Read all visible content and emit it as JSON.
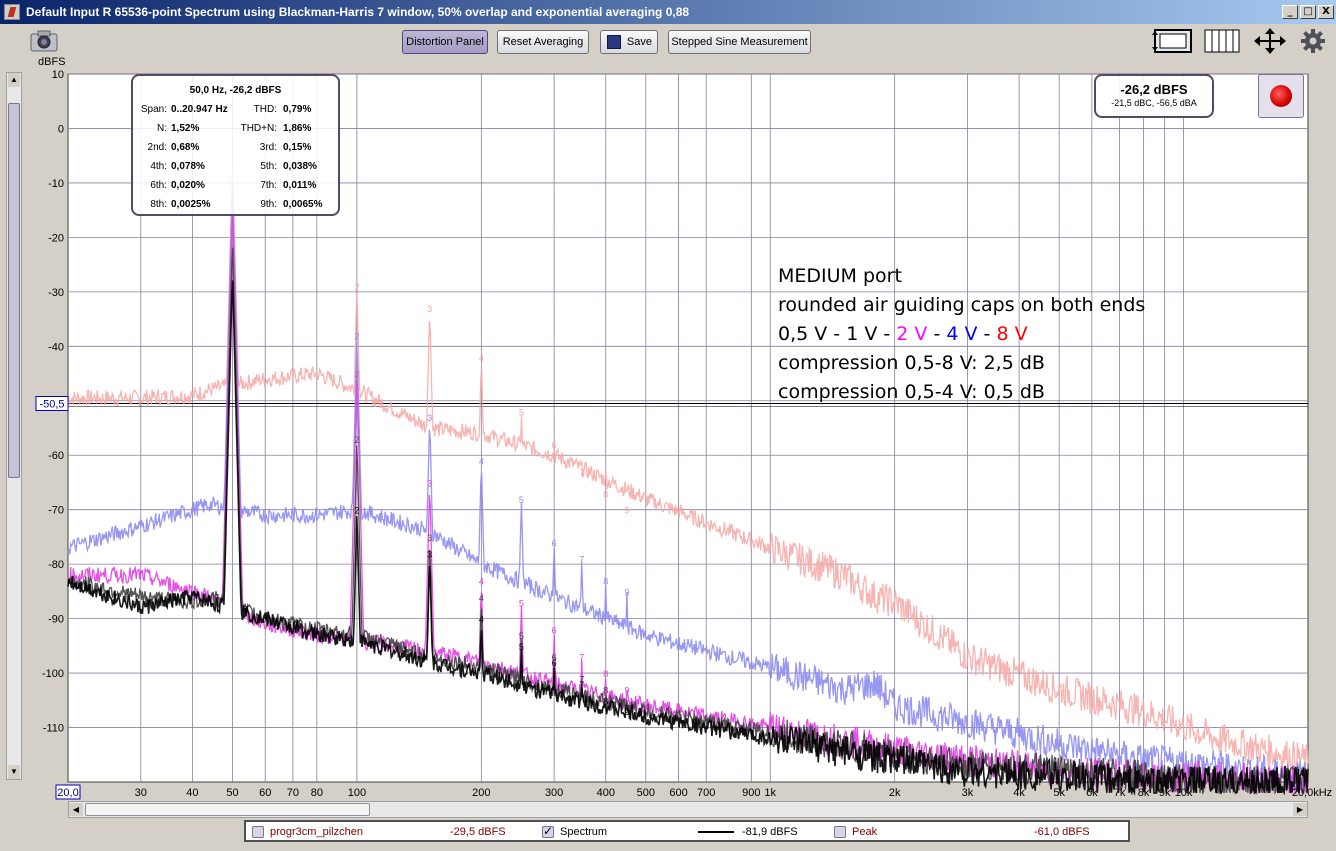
{
  "window": {
    "title": "Default Input R 65536-point Spectrum using Blackman-Harris 7 window, 50% overlap and exponential averaging 0,88",
    "buttons": [
      "_",
      "□",
      "X"
    ]
  },
  "toolbar": {
    "distortion_panel": "Distortion Panel",
    "reset_averaging": "Reset Averaging",
    "save": "Save",
    "stepped_sine": "Stepped Sine Measurement"
  },
  "distortion_panel": {
    "header": "50,0 Hz, -26,2 dBFS",
    "rows": [
      {
        "l1": "Span:",
        "v1": "0..20.947 Hz",
        "l2": "THD:",
        "v2": "0,79%"
      },
      {
        "l1": "N:",
        "v1": "1,52%",
        "l2": "THD+N:",
        "v2": "1,86%"
      },
      {
        "l1": "2nd:",
        "v1": "0,68%",
        "l2": "3rd:",
        "v2": "0,15%"
      },
      {
        "l1": "4th:",
        "v1": "0,078%",
        "l2": "5th:",
        "v2": "0,038%"
      },
      {
        "l1": "6th:",
        "v1": "0,020%",
        "l2": "7th:",
        "v2": "0,011%"
      },
      {
        "l1": "8th:",
        "v1": "0,0025%",
        "l2": "9th:",
        "v2": "0,0065%"
      }
    ]
  },
  "level_readout": {
    "main": "-26,2 dBFS",
    "sub": "-21,5 dBC, -56,5 dBA"
  },
  "annotation": {
    "line1": "MEDIUM port",
    "line2": "rounded air guiding caps on both ends",
    "line3_a": "0,5 V - 1 V  -",
    "line3_b": "2 V",
    "line3_c": " -",
    "line3_d": "4 V",
    "line3_e": "-",
    "line3_f": "8 V",
    "line4": "compression 0,5-8 V: 2,5 dB",
    "line5": "compression 0,5-4 V: 0,5 dB"
  },
  "y_unit": "dBFS",
  "marker_value": "-50,5",
  "x_start_label": "20,0",
  "x_end_label": "20,0kHz",
  "legend": {
    "item1": {
      "name": "progr3cm_pilzchen",
      "value": "-29,5 dBFS"
    },
    "item2": {
      "name": "Spectrum",
      "value": "-81,9 dBFS"
    },
    "item3": {
      "name": "Peak",
      "value": "-61,0 dBFS"
    }
  },
  "colors": {
    "v8": "#f5a8a4",
    "v4": "#8c8cf0",
    "v2": "#e040e0",
    "v1": "#404040",
    "v05": "#000000"
  },
  "chart_data": {
    "type": "line",
    "x_scale": "log",
    "ylabel": "dBFS",
    "xlim": [
      20,
      20000
    ],
    "ylim": [
      -120,
      10
    ],
    "grid": true,
    "x_ticks": [
      {
        "v": 30,
        "t": "30"
      },
      {
        "v": 40,
        "t": "40"
      },
      {
        "v": 50,
        "t": "50"
      },
      {
        "v": 60,
        "t": "60"
      },
      {
        "v": 70,
        "t": "70"
      },
      {
        "v": 80,
        "t": "80"
      },
      {
        "v": 100,
        "t": "100"
      },
      {
        "v": 200,
        "t": "200"
      },
      {
        "v": 300,
        "t": "300"
      },
      {
        "v": 400,
        "t": "400"
      },
      {
        "v": 500,
        "t": "500"
      },
      {
        "v": 600,
        "t": "600"
      },
      {
        "v": 700,
        "t": "700"
      },
      {
        "v": 900,
        "t": "900"
      },
      {
        "v": 1000,
        "t": "1k"
      },
      {
        "v": 2000,
        "t": "2k"
      },
      {
        "v": 3000,
        "t": "3k"
      },
      {
        "v": 4000,
        "t": "4k"
      },
      {
        "v": 5000,
        "t": "5k"
      },
      {
        "v": 6000,
        "t": "6k"
      },
      {
        "v": 7000,
        "t": "7k"
      },
      {
        "v": 8000,
        "t": "8k"
      },
      {
        "v": 9000,
        "t": "9k"
      },
      {
        "v": 10000,
        "t": "10k"
      }
    ],
    "y_ticks": [
      10,
      0,
      -10,
      -20,
      -30,
      -40,
      -50,
      -60,
      -70,
      -80,
      -90,
      -100,
      -110
    ],
    "y_tick_labels": [
      "10",
      "0",
      "-10",
      "-20",
      "-30",
      "-40",
      "-50",
      "-60",
      "-70",
      "-80",
      "-90",
      "-100",
      "-110"
    ],
    "marker_y": -50.5,
    "series": [
      {
        "key": "v8",
        "fundamental": -5,
        "harmonics": [
          -29,
          -33,
          -42,
          -52,
          -58,
          -63,
          -67,
          -70
        ],
        "floor": [
          [
            20,
            -49.5
          ],
          [
            30,
            -49.5
          ],
          [
            40,
            -49
          ],
          [
            44,
            -48
          ],
          [
            60,
            -46
          ],
          [
            80,
            -45
          ],
          [
            100,
            -48
          ],
          [
            150,
            -55
          ],
          [
            200,
            -56
          ],
          [
            300,
            -60
          ],
          [
            500,
            -68
          ],
          [
            1000,
            -77
          ],
          [
            1500,
            -82
          ],
          [
            1800,
            -86
          ],
          [
            2000,
            -87
          ],
          [
            3000,
            -97
          ],
          [
            5000,
            -103
          ],
          [
            8000,
            -107
          ],
          [
            12000,
            -112
          ],
          [
            20000,
            -116
          ]
        ]
      },
      {
        "key": "v4",
        "fundamental": -9,
        "harmonics": [
          -38,
          -53,
          -61,
          -68,
          -76,
          -79,
          -83,
          -85
        ],
        "floor": [
          [
            20,
            -77
          ],
          [
            30,
            -73
          ],
          [
            40,
            -70
          ],
          [
            44,
            -69
          ],
          [
            60,
            -71
          ],
          [
            80,
            -71
          ],
          [
            100,
            -70
          ],
          [
            150,
            -74
          ],
          [
            200,
            -80
          ],
          [
            300,
            -86
          ],
          [
            500,
            -93
          ],
          [
            1000,
            -99
          ],
          [
            1500,
            -103
          ],
          [
            1800,
            -102
          ],
          [
            2000,
            -106
          ],
          [
            3000,
            -109
          ],
          [
            5000,
            -113
          ],
          [
            8000,
            -116
          ],
          [
            12000,
            -117
          ],
          [
            20000,
            -119
          ]
        ]
      },
      {
        "key": "v2",
        "fundamental": -14,
        "harmonics": [
          -45,
          -65,
          -83,
          -87,
          -92,
          -97,
          -100,
          -103
        ],
        "floor": [
          [
            20,
            -82
          ],
          [
            30,
            -82
          ],
          [
            40,
            -85
          ],
          [
            44,
            -86
          ],
          [
            60,
            -91
          ],
          [
            80,
            -93
          ],
          [
            100,
            -94
          ],
          [
            150,
            -96
          ],
          [
            200,
            -98
          ],
          [
            300,
            -102
          ],
          [
            500,
            -106
          ],
          [
            1000,
            -110
          ],
          [
            2000,
            -114
          ],
          [
            3000,
            -116
          ],
          [
            5000,
            -118
          ],
          [
            8000,
            -119
          ],
          [
            12000,
            -119
          ],
          [
            20000,
            -120
          ]
        ]
      },
      {
        "key": "v1",
        "fundamental": -20,
        "harmonics": [
          -57,
          -75,
          -86,
          -93,
          -97,
          -101,
          -103,
          -106
        ],
        "floor": [
          [
            20,
            -83
          ],
          [
            30,
            -86
          ],
          [
            40,
            -87
          ],
          [
            44,
            -86
          ],
          [
            60,
            -90
          ],
          [
            80,
            -92
          ],
          [
            100,
            -93
          ],
          [
            150,
            -97
          ],
          [
            200,
            -99
          ],
          [
            300,
            -103
          ],
          [
            500,
            -107
          ],
          [
            1000,
            -111
          ],
          [
            2000,
            -115
          ],
          [
            3000,
            -117
          ],
          [
            5000,
            -118
          ],
          [
            8000,
            -119
          ],
          [
            12000,
            -120
          ],
          [
            20000,
            -120
          ]
        ]
      },
      {
        "key": "v05",
        "fundamental": -26,
        "harmonics": [
          -70,
          -78,
          -90,
          -95,
          -98,
          -102,
          -105,
          -107
        ],
        "floor": [
          [
            20,
            -83
          ],
          [
            30,
            -88
          ],
          [
            40,
            -86
          ],
          [
            44,
            -87
          ],
          [
            60,
            -90
          ],
          [
            80,
            -93
          ],
          [
            100,
            -94
          ],
          [
            150,
            -98
          ],
          [
            200,
            -100
          ],
          [
            300,
            -104
          ],
          [
            500,
            -108
          ],
          [
            1000,
            -112
          ],
          [
            2000,
            -116
          ],
          [
            3000,
            -118
          ],
          [
            5000,
            -119
          ],
          [
            8000,
            -120
          ],
          [
            12000,
            -120
          ],
          [
            20000,
            -120
          ]
        ]
      }
    ]
  }
}
